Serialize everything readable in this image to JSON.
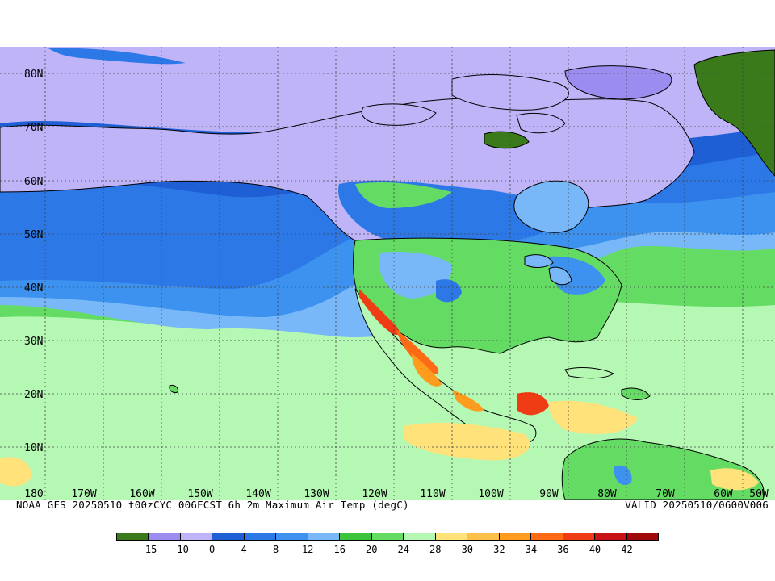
{
  "map": {
    "lat_labels": [
      "80N",
      "70N",
      "60N",
      "50N",
      "40N",
      "30N",
      "20N",
      "10N"
    ],
    "lon_labels": [
      "180",
      "170W",
      "160W",
      "150W",
      "140W",
      "130W",
      "120W",
      "110W",
      "100W",
      "90W",
      "80W",
      "70W",
      "60W",
      "50W"
    ]
  },
  "footer": {
    "left": "NOAA GFS 20250510 t00zCYC 006FCST 6h 2m Maximum Air Temp (degC)",
    "right": "VALID 20250510/0600V006"
  },
  "legend": {
    "colors": [
      "#3a7a1a",
      "#9b8cf0",
      "#c0b4f8",
      "#1e5fd6",
      "#2c78e6",
      "#3c92ee",
      "#78b8f8",
      "#3cc43c",
      "#64dc64",
      "#b4f8b4",
      "#ffe27a",
      "#ffc04a",
      "#ff9c1e",
      "#ff6a14",
      "#f03c14",
      "#c81414",
      "#a00a0a"
    ],
    "labels": [
      "-15",
      "-10",
      "0",
      "4",
      "8",
      "12",
      "16",
      "20",
      "24",
      "28",
      "30",
      "32",
      "34",
      "36",
      "40",
      "42"
    ]
  }
}
